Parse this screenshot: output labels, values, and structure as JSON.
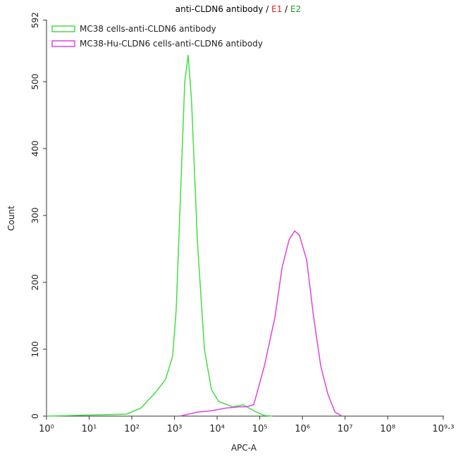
{
  "chart_data": {
    "type": "line",
    "title_parts": [
      {
        "text": "anti-CLDN6 antibody / ",
        "color": "#000000"
      },
      {
        "text": "E1",
        "color": "#e02020"
      },
      {
        "text": " / ",
        "color": "#000000"
      },
      {
        "text": "E2",
        "color": "#20a020"
      }
    ],
    "x_label": "APC-A",
    "y_label": "Count",
    "xscale": "log",
    "xlim": [
      1,
      1995262315
    ],
    "xticks": [
      {
        "value": 1,
        "label": "10⁰"
      },
      {
        "value": 10,
        "label": "10¹"
      },
      {
        "value": 100,
        "label": "10²"
      },
      {
        "value": 1000,
        "label": "10³"
      },
      {
        "value": 10000,
        "label": "10⁴"
      },
      {
        "value": 100000,
        "label": "10⁵"
      },
      {
        "value": 1000000,
        "label": "10⁶"
      },
      {
        "value": 10000000,
        "label": "10⁷"
      },
      {
        "value": 100000000,
        "label": "10⁸"
      },
      {
        "value": 1995262315,
        "label": "10⁹·³"
      }
    ],
    "ylim": [
      0,
      592
    ],
    "yticks": [
      0,
      100,
      200,
      300,
      400,
      500,
      592
    ],
    "series": [
      {
        "name": "MC38 cells-anti-CLDN6 antibody",
        "color": "#44dd44",
        "x": [
          1,
          17,
          76,
          163,
          354,
          620,
          910,
          1100,
          1330,
          1740,
          2100,
          2520,
          3450,
          5030,
          7340,
          10800,
          23000,
          41000,
          72000,
          128000,
          200000
        ],
        "values": [
          0,
          2,
          3,
          12,
          35,
          55,
          90,
          160,
          300,
          500,
          540,
          470,
          260,
          100,
          40,
          22,
          14,
          17,
          8,
          1,
          0
        ]
      },
      {
        "name": "MC38-Hu-CLDN6 cells-anti-CLDN6 antibody",
        "color": "#dd44dd",
        "x": [
          1330,
          3450,
          7340,
          15800,
          34000,
          49000,
          72000,
          128000,
          227000,
          333000,
          489000,
          660000,
          855000,
          1260000,
          1830000,
          2690000,
          3950000,
          5800000,
          8500000
        ],
        "values": [
          0,
          6,
          8,
          12,
          14,
          14,
          17,
          75,
          148,
          222,
          264,
          277,
          270,
          233,
          148,
          75,
          33,
          6,
          0
        ]
      }
    ]
  }
}
